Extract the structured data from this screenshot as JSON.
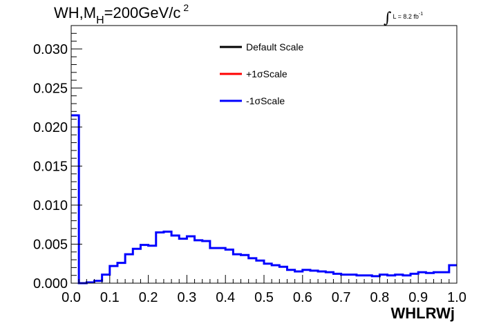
{
  "title": {
    "prefix": "WH,M",
    "subscript": "H",
    "middle": "=200GeV/c",
    "superscript": "2"
  },
  "lumi": {
    "symbol": "∫",
    "text": "L = 8.2 fb",
    "superscript": "-1"
  },
  "chart_data": {
    "type": "histogram",
    "xlabel": "WHLRWj",
    "ylabel": "",
    "xlim": [
      0,
      1
    ],
    "ylim": [
      0,
      0.033
    ],
    "xticks": [
      "0.0",
      "0.1",
      "0.2",
      "0.3",
      "0.4",
      "0.5",
      "0.6",
      "0.7",
      "0.8",
      "0.9",
      "1.0"
    ],
    "yticks": [
      "0.000",
      "0.005",
      "0.010",
      "0.015",
      "0.020",
      "0.025",
      "0.030"
    ],
    "bin_width": 0.02,
    "legend": {
      "placement": "top-center",
      "entries": [
        {
          "label": "Default Scale",
          "color": "#000000"
        },
        {
          "label": "+1σScale",
          "color": "#ff0000"
        },
        {
          "label": "-1σScale",
          "color": "#0000ff"
        }
      ]
    },
    "series": [
      {
        "name": "-1σScale",
        "color": "#0000ff",
        "values": [
          0.0215,
          0.0,
          0.0001,
          0.0003,
          0.0011,
          0.0022,
          0.0026,
          0.0037,
          0.0044,
          0.0049,
          0.0048,
          0.0065,
          0.0066,
          0.0061,
          0.0057,
          0.006,
          0.0055,
          0.0054,
          0.0045,
          0.0045,
          0.0043,
          0.0037,
          0.0036,
          0.0032,
          0.0029,
          0.0025,
          0.0023,
          0.0021,
          0.0017,
          0.0015,
          0.0017,
          0.0016,
          0.0015,
          0.0014,
          0.0012,
          0.0011,
          0.0011,
          0.001,
          0.001,
          0.0009,
          0.0011,
          0.001,
          0.0011,
          0.001,
          0.0012,
          0.0014,
          0.0013,
          0.0014,
          0.0014,
          0.0023
        ]
      }
    ]
  }
}
